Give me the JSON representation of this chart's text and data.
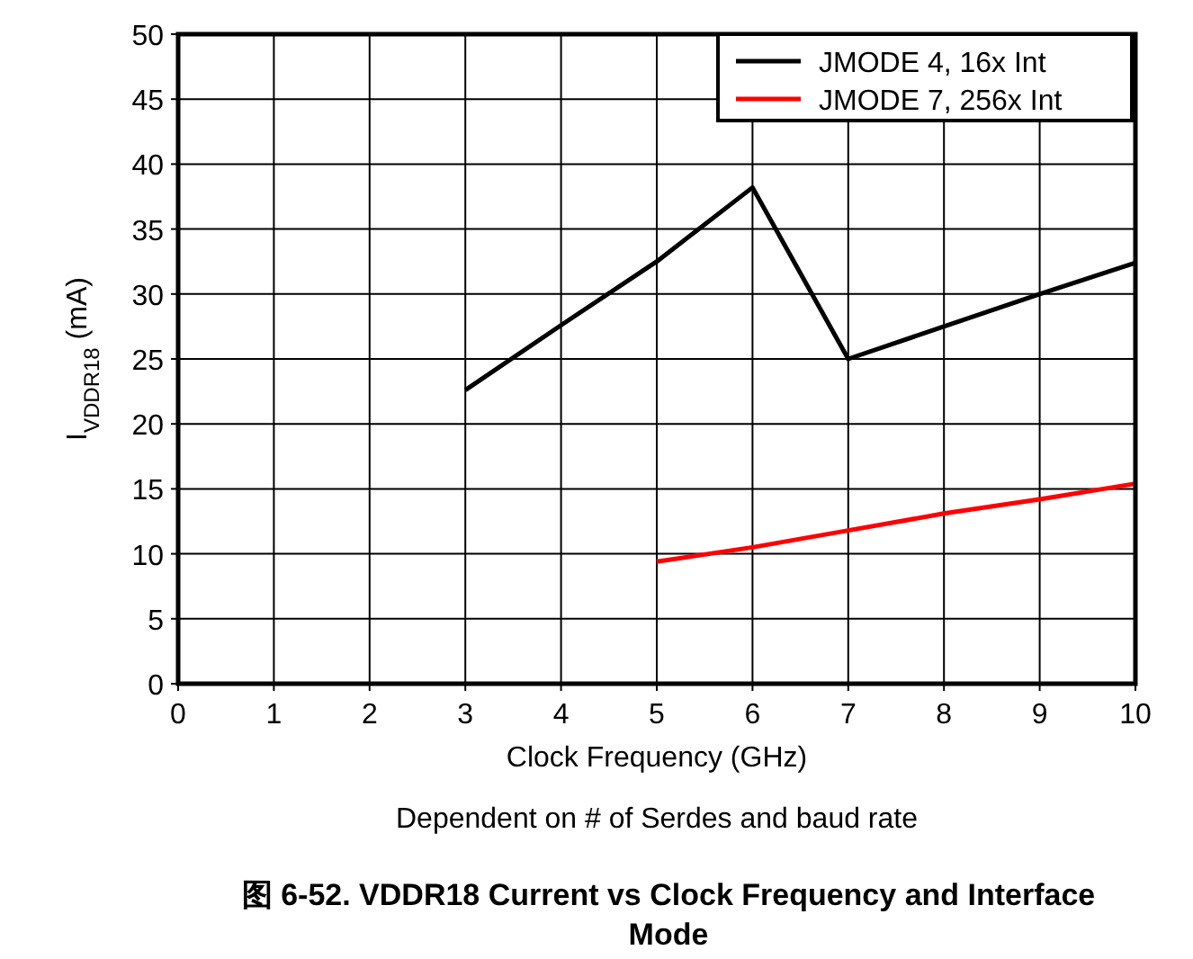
{
  "chart_data": {
    "type": "line",
    "xlabel": "Clock Frequency (GHz)",
    "ylabel": "I$_{VDDR18}$ (mA)",
    "title": "图 6-52. VDDR18 Current vs Clock Frequency and Interface Mode",
    "annotations": [
      "Dependent on # of Serdes and baud rate"
    ],
    "series": [
      {
        "name": "JMODE 4, 16x Int",
        "color": "#000000",
        "x": [
          3,
          4,
          5,
          6,
          7,
          8,
          9,
          10
        ],
        "values": [
          22.6,
          27.6,
          32.5,
          38.2,
          25,
          27.5,
          30,
          32.4
        ]
      },
      {
        "name": "JMODE 7, 256x Int",
        "color": "#ff0000",
        "x": [
          5,
          6,
          7,
          8,
          9,
          10
        ],
        "values": [
          9.4,
          10.5,
          11.8,
          13.1,
          14.2,
          15.4
        ]
      }
    ],
    "xlim": [
      0,
      10
    ],
    "xticks": [
      0,
      1,
      2,
      3,
      4,
      5,
      6,
      7,
      8,
      9,
      10
    ],
    "ylim": [
      0,
      50
    ],
    "yticks": [
      0,
      5,
      10,
      15,
      20,
      25,
      30,
      35,
      40,
      45,
      50
    ],
    "grid": true,
    "legend": "top right",
    "line_style": "solid",
    "marker": "none"
  }
}
